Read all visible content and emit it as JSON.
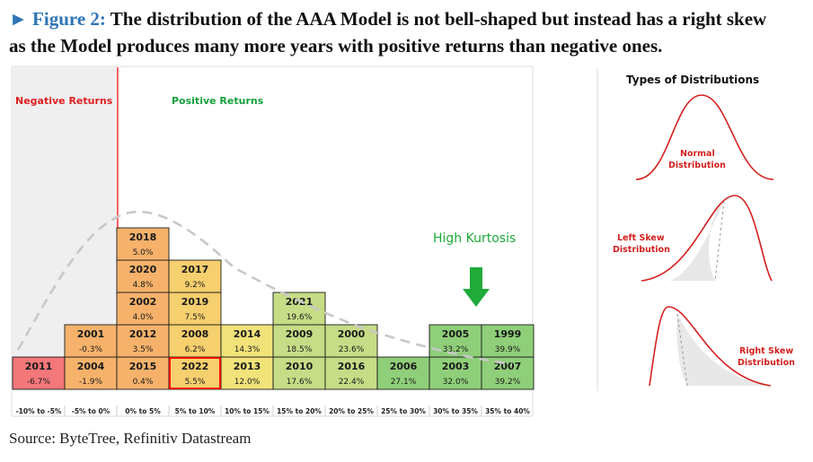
{
  "figure": {
    "lead": "► Figure 2:",
    "title_line1": " The distribution of the AAA Model is not bell-shaped but instead has a right skew",
    "title_line2": "as the Model produces many more years with positive returns than negative ones."
  },
  "source": "Source: ByteTree, Refinitiv Datastream",
  "colors": {
    "red": "#f4777a",
    "orange": "#f6b26b",
    "yellow_orange": "#f6cf6e",
    "yellow": "#f2e27a",
    "light_green": "#c6dc86",
    "green": "#8fcf79",
    "negative_bg": "#efefef",
    "divider": "#ff0000",
    "highlight_border": "#ff0000",
    "curve": "#c8c8c8",
    "arrow": "#1faa3a",
    "dist_curve": "#d42020",
    "dist_shade": "#e8e8e8"
  },
  "chart_data": {
    "type": "table",
    "title": "",
    "regions": {
      "negative": "Negative Returns",
      "positive": "Positive Returns"
    },
    "annotation": "High Kurtosis",
    "bins": [
      "-10% to -5%",
      "-5% to 0%",
      "0% to 5%",
      "5% to 10%",
      "10% to 15%",
      "15% to 20%",
      "20% to 25%",
      "25% to 30%",
      "30% to 35%",
      "35% to 40%"
    ],
    "columns": [
      {
        "bin": "-10% to -5%",
        "color": "red",
        "years": [
          {
            "year": "2011",
            "ret": "-6.7%",
            "value": -6.7
          }
        ]
      },
      {
        "bin": "-5% to 0%",
        "color": "orange",
        "years": [
          {
            "year": "2004",
            "ret": "-1.9%",
            "value": -1.9
          },
          {
            "year": "2001",
            "ret": "-0.3%",
            "value": -0.3
          }
        ]
      },
      {
        "bin": "0% to 5%",
        "color": "orange",
        "years": [
          {
            "year": "2015",
            "ret": "0.4%",
            "value": 0.4
          },
          {
            "year": "2012",
            "ret": "3.5%",
            "value": 3.5
          },
          {
            "year": "2002",
            "ret": "4.0%",
            "value": 4.0
          },
          {
            "year": "2020",
            "ret": "4.8%",
            "value": 4.8
          },
          {
            "year": "2018",
            "ret": "5.0%",
            "value": 5.0
          }
        ]
      },
      {
        "bin": "5% to 10%",
        "color": "yellow_orange",
        "years": [
          {
            "year": "2022",
            "ret": "5.5%",
            "value": 5.5,
            "highlight": true
          },
          {
            "year": "2008",
            "ret": "6.2%",
            "value": 6.2
          },
          {
            "year": "2019",
            "ret": "7.5%",
            "value": 7.5
          },
          {
            "year": "2017",
            "ret": "9.2%",
            "value": 9.2
          }
        ]
      },
      {
        "bin": "10% to 15%",
        "color": "yellow",
        "years": [
          {
            "year": "2013",
            "ret": "12.0%",
            "value": 12.0
          },
          {
            "year": "2014",
            "ret": "14.3%",
            "value": 14.3
          }
        ]
      },
      {
        "bin": "15% to 20%",
        "color": "light_green",
        "years": [
          {
            "year": "2010",
            "ret": "17.6%",
            "value": 17.6
          },
          {
            "year": "2009",
            "ret": "18.5%",
            "value": 18.5
          },
          {
            "year": "2021",
            "ret": "19.6%",
            "value": 19.6
          }
        ]
      },
      {
        "bin": "20% to 25%",
        "color": "light_green",
        "years": [
          {
            "year": "2016",
            "ret": "22.4%",
            "value": 22.4
          },
          {
            "year": "2000",
            "ret": "23.6%",
            "value": 23.6
          }
        ]
      },
      {
        "bin": "25% to 30%",
        "color": "green",
        "years": [
          {
            "year": "2006",
            "ret": "27.1%",
            "value": 27.1
          }
        ]
      },
      {
        "bin": "30% to 35%",
        "color": "green",
        "years": [
          {
            "year": "2003",
            "ret": "32.0%",
            "value": 32.0
          },
          {
            "year": "2005",
            "ret": "33.2%",
            "value": 33.2
          }
        ]
      },
      {
        "bin": "35% to 40%",
        "color": "green",
        "years": [
          {
            "year": "2007",
            "ret": "39.2%",
            "value": 39.2
          },
          {
            "year": "1999",
            "ret": "39.9%",
            "value": 39.9
          }
        ]
      }
    ]
  },
  "distributions": {
    "title": "Types of Distributions",
    "normal": [
      "Normal",
      "Distribution"
    ],
    "left": [
      "Left Skew",
      "Distribution"
    ],
    "right": [
      "Right Skew",
      "Distribution"
    ]
  }
}
